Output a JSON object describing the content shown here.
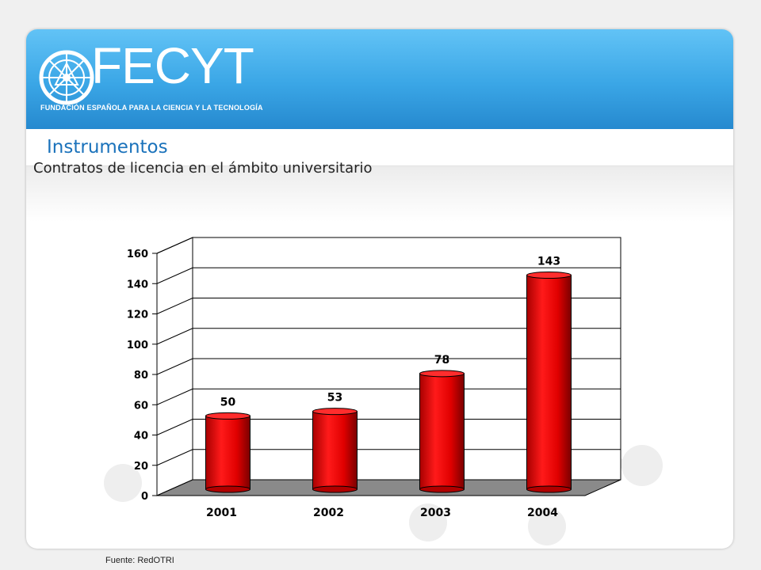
{
  "logo": {
    "name": "FECYT",
    "tagline": "FUNDACIÓN ESPAÑOLA PARA LA CIENCIA Y LA TECNOLOGÍA"
  },
  "section_title": "Instrumentos",
  "subtitle": "Contratos de licencia en el ámbito universitario",
  "source": "Fuente: RedOTRI",
  "colors": {
    "header_top": "#62c3f6",
    "header_bottom": "#2689cf",
    "section_title": "#1a72bb",
    "bar": "#e00000",
    "floor": "#8a8a8a",
    "decor_dots": "#eeeeee"
  },
  "chart_data": {
    "type": "bar",
    "style": "3d-cylinder",
    "categories": [
      "2001",
      "2002",
      "2003",
      "2004"
    ],
    "values": [
      50,
      53,
      78,
      143
    ],
    "data_labels": [
      "50",
      "53",
      "78",
      "143"
    ],
    "yticks": [
      "0",
      "20",
      "40",
      "60",
      "80",
      "100",
      "120",
      "140",
      "160"
    ],
    "ylim": [
      0,
      160
    ],
    "title": "",
    "xlabel": "",
    "ylabel": "",
    "grid": true,
    "legend": "none"
  }
}
